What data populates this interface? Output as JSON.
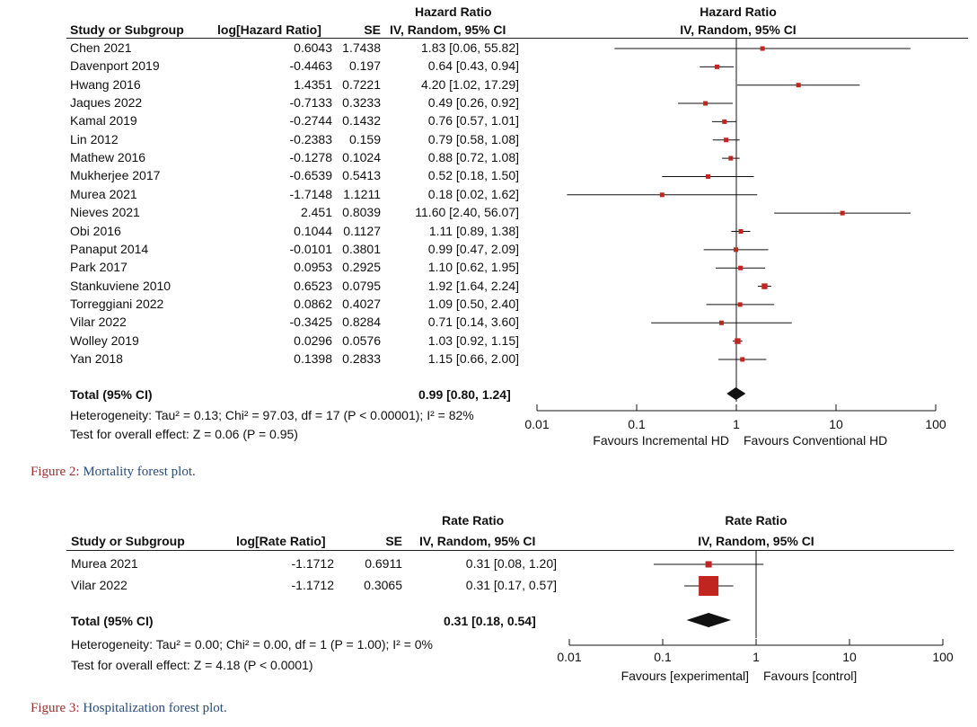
{
  "figures": [
    {
      "id": "fig2",
      "headers": {
        "study": "Study or Subgroup",
        "log": "log[Hazard Ratio]",
        "se": "SE",
        "ratio_title": "Hazard Ratio",
        "ratio_sub": "IV, Random, 95% CI",
        "plot_title": "Hazard Ratio",
        "plot_sub": "IV, Random, 95% CI"
      },
      "studies": [
        {
          "name": "Chen 2021",
          "log": "0.6043",
          "se": "1.7438",
          "ci": "1.83 [0.06, 55.82]",
          "est": 1.83,
          "lo": 0.06,
          "hi": 55.82
        },
        {
          "name": "Davenport 2019",
          "log": "-0.4463",
          "se": "0.197",
          "ci": "0.64 [0.43, 0.94]",
          "est": 0.64,
          "lo": 0.43,
          "hi": 0.94
        },
        {
          "name": "Hwang 2016",
          "log": "1.4351",
          "se": "0.7221",
          "ci": "4.20 [1.02, 17.29]",
          "est": 4.2,
          "lo": 1.02,
          "hi": 17.29
        },
        {
          "name": "Jaques 2022",
          "log": "-0.7133",
          "se": "0.3233",
          "ci": "0.49 [0.26, 0.92]",
          "est": 0.49,
          "lo": 0.26,
          "hi": 0.92
        },
        {
          "name": "Kamal 2019",
          "log": "-0.2744",
          "se": "0.1432",
          "ci": "0.76 [0.57, 1.01]",
          "est": 0.76,
          "lo": 0.57,
          "hi": 1.01
        },
        {
          "name": "Lin 2012",
          "log": "-0.2383",
          "se": "0.159",
          "ci": "0.79 [0.58, 1.08]",
          "est": 0.79,
          "lo": 0.58,
          "hi": 1.08
        },
        {
          "name": "Mathew 2016",
          "log": "-0.1278",
          "se": "0.1024",
          "ci": "0.88 [0.72, 1.08]",
          "est": 0.88,
          "lo": 0.72,
          "hi": 1.08
        },
        {
          "name": "Mukherjee 2017",
          "log": "-0.6539",
          "se": "0.5413",
          "ci": "0.52 [0.18, 1.50]",
          "est": 0.52,
          "lo": 0.18,
          "hi": 1.5
        },
        {
          "name": "Murea 2021",
          "log": "-1.7148",
          "se": "1.1211",
          "ci": "0.18 [0.02, 1.62]",
          "est": 0.18,
          "lo": 0.02,
          "hi": 1.62
        },
        {
          "name": "Nieves 2021",
          "log": "2.451",
          "se": "0.8039",
          "ci": "11.60 [2.40, 56.07]",
          "est": 11.6,
          "lo": 2.4,
          "hi": 56.07
        },
        {
          "name": "Obi 2016",
          "log": "0.1044",
          "se": "0.1127",
          "ci": "1.11 [0.89, 1.38]",
          "est": 1.11,
          "lo": 0.89,
          "hi": 1.38
        },
        {
          "name": "Panaput 2014",
          "log": "-0.0101",
          "se": "0.3801",
          "ci": "0.99 [0.47, 2.09]",
          "est": 0.99,
          "lo": 0.47,
          "hi": 2.09
        },
        {
          "name": "Park 2017",
          "log": "0.0953",
          "se": "0.2925",
          "ci": "1.10 [0.62, 1.95]",
          "est": 1.1,
          "lo": 0.62,
          "hi": 1.95
        },
        {
          "name": "Stankuviene 2010",
          "log": "0.6523",
          "se": "0.0795",
          "ci": "1.92 [1.64, 2.24]",
          "est": 1.92,
          "lo": 1.64,
          "hi": 2.24
        },
        {
          "name": "Torreggiani 2022",
          "log": "0.0862",
          "se": "0.4027",
          "ci": "1.09 [0.50, 2.40]",
          "est": 1.09,
          "lo": 0.5,
          "hi": 2.4
        },
        {
          "name": "Vilar 2022",
          "log": "-0.3425",
          "se": "0.8284",
          "ci": "0.71 [0.14, 3.60]",
          "est": 0.71,
          "lo": 0.14,
          "hi": 3.6
        },
        {
          "name": "Wolley 2019",
          "log": "0.0296",
          "se": "0.0576",
          "ci": "1.03 [0.92, 1.15]",
          "est": 1.03,
          "lo": 0.92,
          "hi": 1.15
        },
        {
          "name": "Yan 2018",
          "log": "0.1398",
          "se": "0.2833",
          "ci": "1.15 [0.66, 2.00]",
          "est": 1.15,
          "lo": 0.66,
          "hi": 2.0
        }
      ],
      "total": {
        "label": "Total (95% CI)",
        "ci": "0.99 [0.80, 1.24]",
        "est": 0.99,
        "lo": 0.8,
        "hi": 1.24
      },
      "heterogeneity": "Heterogeneity: Tau² = 0.13; Chi² = 97.03, df = 17 (P < 0.00001); I² = 82%",
      "overall": "Test for overall effect: Z = 0.06 (P = 0.95)",
      "axis": {
        "ticks": [
          "0.01",
          "0.1",
          "1",
          "10",
          "100"
        ],
        "tick_values": [
          0.01,
          0.1,
          1,
          10,
          100
        ],
        "scale": "log",
        "xlim": [
          0.01,
          100
        ]
      },
      "favours_left": "Favours Incremental HD",
      "favours_right": "Favours Conventional HD",
      "caption_label": "Figure 2:",
      "caption_text": "Mortality forest plot."
    },
    {
      "id": "fig3",
      "headers": {
        "study": "Study or Subgroup",
        "log": "log[Rate Ratio]",
        "se": "SE",
        "ratio_title": "Rate Ratio",
        "ratio_sub": "IV, Random, 95% CI",
        "plot_title": "Rate Ratio",
        "plot_sub": "IV, Random, 95% CI"
      },
      "studies": [
        {
          "name": "Murea 2021",
          "log": "-1.1712",
          "se": "0.6911",
          "ci": "0.31 [0.08, 1.20]",
          "est": 0.31,
          "lo": 0.08,
          "hi": 1.2
        },
        {
          "name": "Vilar 2022",
          "log": "-1.1712",
          "se": "0.3065",
          "ci": "0.31 [0.17, 0.57]",
          "est": 0.31,
          "lo": 0.17,
          "hi": 0.57
        }
      ],
      "total": {
        "label": "Total (95% CI)",
        "ci": "0.31 [0.18, 0.54]",
        "est": 0.31,
        "lo": 0.18,
        "hi": 0.54
      },
      "heterogeneity": "Heterogeneity: Tau² = 0.00; Chi² = 0.00, df = 1 (P = 1.00); I² = 0%",
      "overall": "Test for overall effect: Z = 4.18 (P < 0.0001)",
      "axis": {
        "ticks": [
          "0.01",
          "0.1",
          "1",
          "10",
          "100"
        ],
        "tick_values": [
          0.01,
          0.1,
          1,
          10,
          100
        ],
        "scale": "log",
        "xlim": [
          0.01,
          100
        ]
      },
      "favours_left": "Favours [experimental]",
      "favours_right": "Favours [control]",
      "caption_label": "Figure 3:",
      "caption_text": "Hospitalization forest plot."
    }
  ],
  "colors": {
    "marker": "#c0261f",
    "line": "#111111",
    "caption_label": "#9b2d2d",
    "caption_text": "#2a4d7a"
  }
}
